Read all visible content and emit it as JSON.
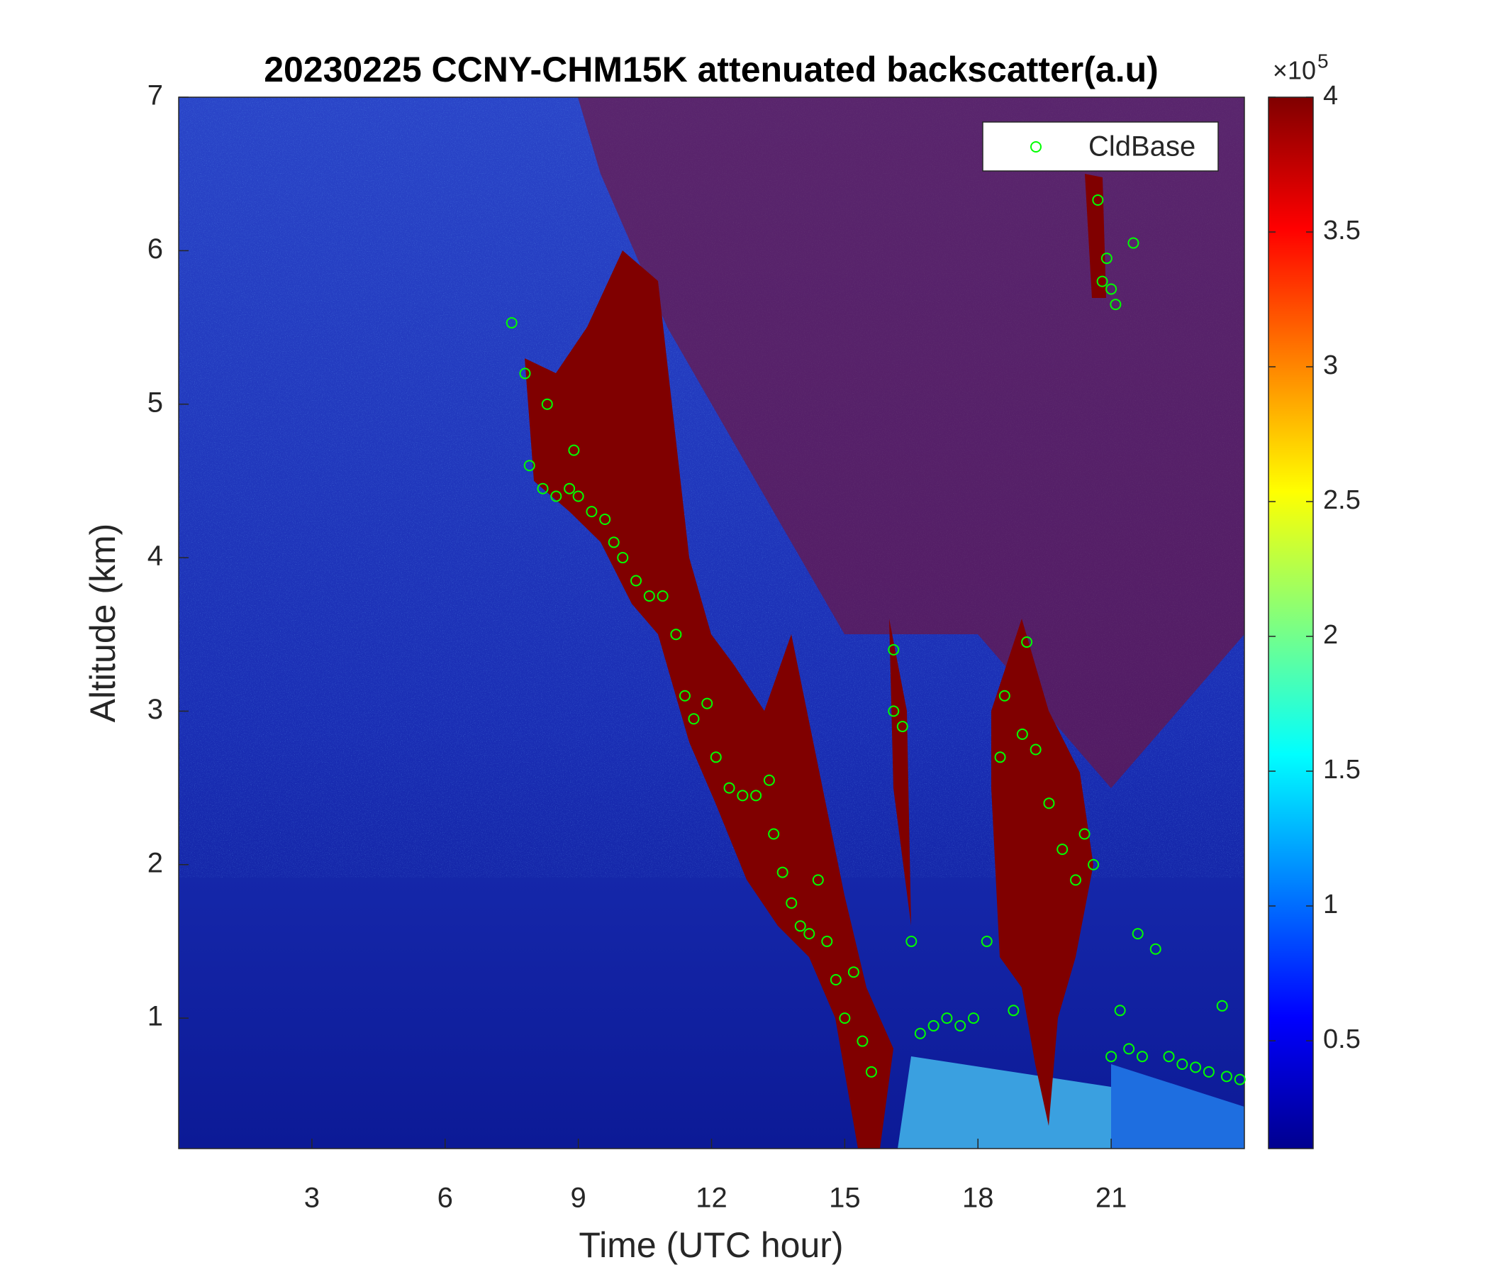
{
  "chart_data": {
    "type": "scatter",
    "title": "20230225 CCNY-CHM15K attenuated backscatter(a.u)",
    "xlabel": "Time (UTC hour)",
    "ylabel": "Altitude (km)",
    "xlim": [
      0,
      24
    ],
    "ylim": [
      0.15,
      7
    ],
    "xticks": [
      3,
      6,
      9,
      12,
      15,
      18,
      21
    ],
    "yticks": [
      1,
      2,
      3,
      4,
      5,
      6,
      7
    ],
    "legend": "upper right",
    "colorbar": {
      "clim": [
        0.1,
        4
      ],
      "ticks": [
        0.5,
        1,
        1.5,
        2,
        2.5,
        3,
        3.5,
        4
      ],
      "multiplier": "×10",
      "exponent": "5"
    },
    "series": [
      {
        "name": "CldBase",
        "color": "#00ff00",
        "x": [
          7.5,
          7.8,
          7.9,
          8.2,
          8.3,
          8.5,
          8.8,
          8.9,
          9.0,
          9.3,
          9.6,
          9.8,
          10.0,
          10.3,
          10.6,
          10.9,
          11.2,
          11.4,
          11.6,
          11.9,
          12.1,
          12.4,
          12.7,
          13.0,
          13.3,
          13.4,
          13.6,
          13.8,
          14.0,
          14.2,
          14.4,
          14.6,
          14.8,
          15.0,
          15.2,
          15.4,
          15.6,
          16.1,
          16.1,
          16.3,
          16.5,
          16.7,
          17.0,
          17.3,
          17.6,
          17.9,
          18.2,
          18.5,
          18.6,
          18.8,
          19.0,
          19.1,
          19.3,
          19.6,
          19.9,
          20.2,
          20.4,
          20.6,
          20.7,
          20.8,
          20.9,
          21.0,
          21.1,
          21.0,
          21.2,
          21.4,
          21.5,
          21.6,
          21.7,
          22.0,
          22.3,
          22.6,
          22.9,
          23.2,
          23.5,
          23.6,
          23.9
        ],
        "y": [
          5.53,
          5.2,
          4.6,
          4.45,
          5.0,
          4.4,
          4.45,
          4.7,
          4.4,
          4.3,
          4.25,
          4.1,
          4.0,
          3.85,
          3.75,
          3.75,
          3.5,
          3.1,
          2.95,
          3.05,
          2.7,
          2.5,
          2.45,
          2.45,
          2.55,
          2.2,
          1.95,
          1.75,
          1.6,
          1.55,
          1.9,
          1.5,
          1.25,
          1.0,
          1.3,
          0.85,
          0.65,
          3.0,
          3.4,
          2.9,
          1.5,
          0.9,
          0.95,
          1.0,
          0.95,
          1.0,
          1.5,
          2.7,
          3.1,
          1.05,
          2.85,
          3.45,
          2.75,
          2.4,
          2.1,
          1.9,
          2.2,
          2.0,
          6.33,
          5.8,
          5.95,
          5.75,
          5.65,
          0.75,
          1.05,
          0.8,
          6.05,
          1.55,
          0.75,
          1.45,
          0.75,
          0.7,
          0.68,
          0.65,
          1.08,
          0.62,
          0.6
        ]
      }
    ]
  }
}
